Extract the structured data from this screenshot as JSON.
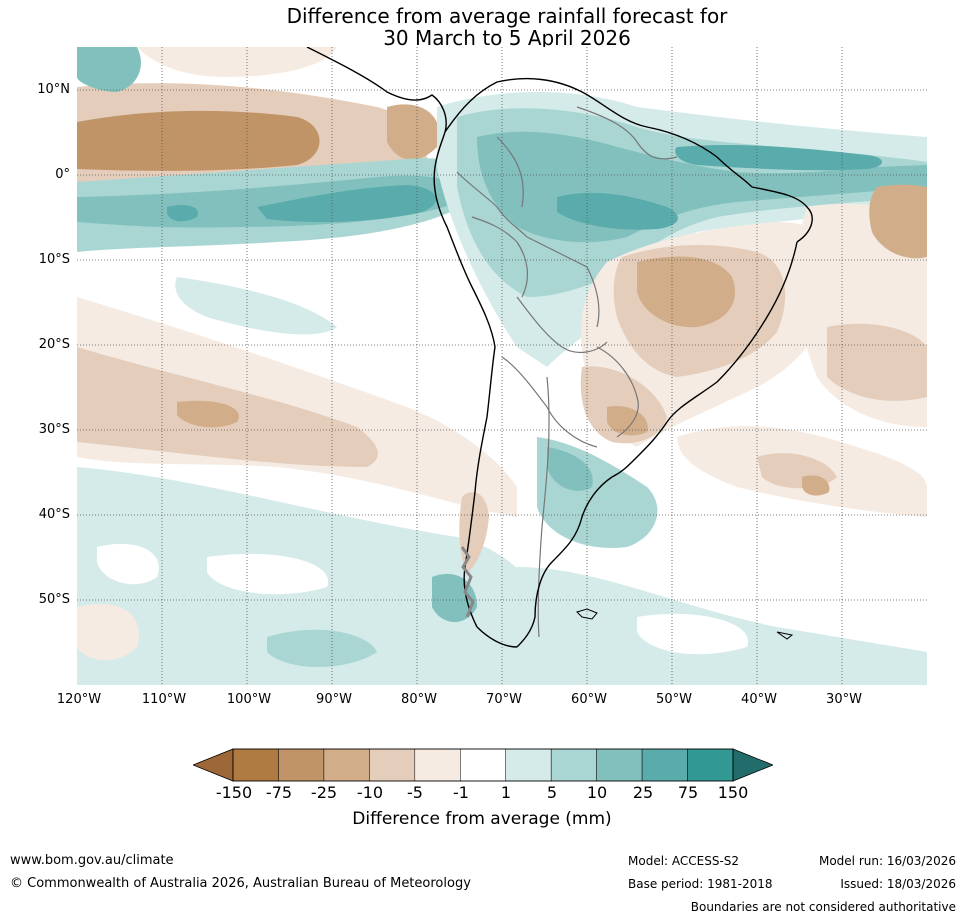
{
  "title": {
    "line1": "Difference from average rainfall forecast for",
    "line2": "30 March to 5 April 2026"
  },
  "map": {
    "lat_labels": [
      "10°N",
      "0°",
      "10°S",
      "20°S",
      "30°S",
      "40°S",
      "50°S"
    ],
    "lon_labels": [
      "120°W",
      "110°W",
      "100°W",
      "90°W",
      "80°W",
      "70°W",
      "60°W",
      "50°W",
      "40°W",
      "30°W"
    ]
  },
  "legend": {
    "ticks": [
      "-150",
      "-75",
      "-25",
      "-10",
      "-5",
      "-1",
      "1",
      "5",
      "10",
      "25",
      "75",
      "150"
    ],
    "title": "Difference from average (mm)",
    "colors": [
      "#9d6738",
      "#b07b43",
      "#c19468",
      "#d2ad8a",
      "#e4cebb",
      "#f5ebe3",
      "#ffffff",
      "#d4ebe9",
      "#a9d6d3",
      "#82c0be",
      "#5aabab",
      "#329894",
      "#226d6b"
    ]
  },
  "footer": {
    "website": "www.bom.gov.au/climate",
    "copyright": "© Commonwealth of Australia 2026, Australian Bureau of Meteorology",
    "model": "Model: ACCESS-S2",
    "base_period": "Base period: 1981-2018",
    "model_run": "Model run: 16/03/2026",
    "issued": "Issued: 18/03/2026",
    "disclaimer": "Boundaries are not considered authoritative"
  }
}
